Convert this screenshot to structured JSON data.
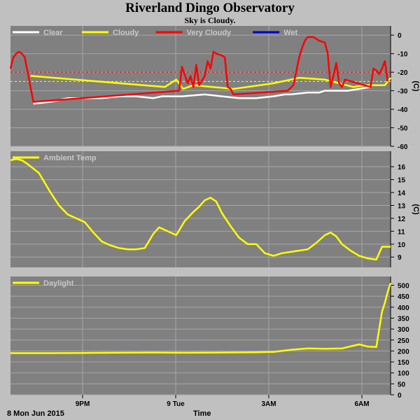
{
  "header": {
    "title": "Riverland Dingo Observatory",
    "subtitle": "Sky is Cloudy."
  },
  "footer": {
    "date_label": "8 Mon Jun 2015",
    "xaxis_title": "Time"
  },
  "colors": {
    "background": "#c0c0c0",
    "plot_bg": "#808080",
    "grid": "#a6a6a6",
    "clear": "#ffffff",
    "cloudy": "#ffff00",
    "very_cloudy": "#ff0000",
    "wet": "#0000cc"
  },
  "chart_data": [
    {
      "type": "line",
      "title": "",
      "ylabel": "(C)",
      "ylim": [
        -60,
        5
      ],
      "yticks": [
        0,
        -10,
        -20,
        -30,
        -40,
        -50,
        -60
      ],
      "x_range": [
        "19:50",
        "06:55"
      ],
      "thresholds": [
        {
          "value": -20,
          "color": "#ff0000"
        },
        {
          "value": -25,
          "color": "#ffff00"
        }
      ],
      "legend": [
        "Clear",
        "Cloudy",
        "Very Cloudy",
        "Wet"
      ],
      "series": [
        {
          "name": "Clear",
          "color": "#ffffff",
          "x": [
            "20:30",
            "21:00",
            "21:30",
            "22:00",
            "22:30",
            "23:00",
            "23:30",
            "00:00",
            "00:15",
            "00:50",
            "01:30",
            "02:00",
            "02:30",
            "03:00",
            "03:30",
            "03:50",
            "04:00",
            "04:30",
            "04:50",
            "05:00",
            "05:20",
            "05:40",
            "06:00",
            "06:20"
          ],
          "values": [
            -37,
            -36,
            -34,
            -34,
            -34,
            -33,
            -33,
            -34,
            -33,
            -33,
            -32,
            -33,
            -34,
            -34,
            -33,
            -32,
            -32,
            -31,
            -31,
            -30,
            -30,
            -30,
            -29,
            -28
          ]
        },
        {
          "name": "Cloudy",
          "color": "#ffff00",
          "x": [
            "20:25",
            "00:20",
            "00:40",
            "00:52",
            "01:10",
            "02:20",
            "03:30",
            "04:15",
            "05:00",
            "05:50",
            "06:10",
            "06:45",
            "06:55"
          ],
          "values": [
            -22,
            -28,
            -24,
            -29,
            -27,
            -29,
            -26,
            -23,
            -24,
            -28,
            -27,
            -27,
            -23
          ]
        },
        {
          "name": "Very Cloudy",
          "color": "#ff0000",
          "x": [
            "19:50",
            "19:55",
            "20:00",
            "20:05",
            "20:10",
            "20:15",
            "20:20",
            "20:25",
            "20:30",
            "00:45",
            "00:50",
            "01:00",
            "01:05",
            "01:10",
            "01:15",
            "01:20",
            "01:30",
            "01:35",
            "01:40",
            "01:45",
            "01:50",
            "02:00",
            "02:05",
            "02:10",
            "02:15",
            "02:20",
            "03:55",
            "04:05",
            "04:15",
            "04:20",
            "04:25",
            "04:30",
            "04:35",
            "04:40",
            "04:45",
            "04:50",
            "05:00",
            "05:05",
            "05:10",
            "05:15",
            "05:20",
            "05:25",
            "05:30",
            "05:35",
            "06:20",
            "06:25",
            "06:30",
            "06:35",
            "06:40",
            "06:45",
            "06:50"
          ],
          "values": [
            -18,
            -12,
            -10,
            -9,
            -10,
            -12,
            -20,
            -28,
            -36,
            -30,
            -17,
            -26,
            -22,
            -28,
            -16,
            -27,
            -22,
            -14,
            -18,
            -9,
            -10,
            -11,
            -12,
            -28,
            -29,
            -32,
            -30,
            -27,
            -12,
            -7,
            -3,
            -1,
            -1,
            -1,
            -2,
            -3,
            -4,
            -10,
            -28,
            -22,
            -15,
            -26,
            -28,
            -24,
            -28,
            -18,
            -19,
            -21,
            -18,
            -14,
            -25
          ]
        },
        {
          "name": "Wet",
          "color": "#0000cc",
          "x": [],
          "values": []
        }
      ]
    },
    {
      "type": "line",
      "title": "",
      "ylabel": "(C)",
      "ylim": [
        8.2,
        17.2
      ],
      "yticks": [
        9,
        10,
        11,
        12,
        13,
        14,
        15,
        16
      ],
      "x_range": [
        "19:50",
        "06:55"
      ],
      "legend": [
        "Ambient Temp"
      ],
      "series": [
        {
          "name": "Ambient Temp",
          "color": "#ffff00",
          "x": [
            "19:50",
            "20:00",
            "20:10",
            "20:20",
            "20:40",
            "21:00",
            "21:15",
            "21:30",
            "21:45",
            "22:00",
            "22:15",
            "22:30",
            "22:45",
            "23:00",
            "23:15",
            "23:30",
            "23:45",
            "00:00",
            "00:10",
            "00:20",
            "00:40",
            "00:55",
            "01:10",
            "01:20",
            "01:30",
            "01:40",
            "01:50",
            "02:00",
            "02:15",
            "02:30",
            "02:45",
            "03:00",
            "03:15",
            "03:30",
            "03:45",
            "04:00",
            "04:15",
            "04:30",
            "04:45",
            "05:00",
            "05:10",
            "05:20",
            "05:30",
            "05:45",
            "06:00",
            "06:15",
            "06:30",
            "06:40",
            "06:50",
            "06:55"
          ],
          "values": [
            16.5,
            16.6,
            16.5,
            16.2,
            15.5,
            14.0,
            13.0,
            12.3,
            12.0,
            11.7,
            10.9,
            10.2,
            9.9,
            9.7,
            9.6,
            9.6,
            9.7,
            10.8,
            11.3,
            11.1,
            10.7,
            11.8,
            12.5,
            12.9,
            13.4,
            13.6,
            13.3,
            12.4,
            11.4,
            10.5,
            10.0,
            10.0,
            9.3,
            9.1,
            9.3,
            9.4,
            9.5,
            9.6,
            10.1,
            10.7,
            10.9,
            10.6,
            10.0,
            9.5,
            9.1,
            8.9,
            8.8,
            9.8,
            9.8,
            9.8
          ]
        }
      ]
    },
    {
      "type": "line",
      "title": "",
      "ylabel": "",
      "ylim": [
        0,
        540
      ],
      "yticks": [
        0,
        50,
        100,
        150,
        200,
        250,
        300,
        350,
        400,
        450,
        500
      ],
      "xticks": [
        "9PM",
        "9 Tue",
        "3AM",
        "6AM"
      ],
      "x_range": [
        "19:50",
        "06:55"
      ],
      "legend": [
        "Daylight"
      ],
      "series": [
        {
          "name": "Daylight",
          "color": "#ffff00",
          "x": [
            "19:50",
            "21:00",
            "22:00",
            "23:00",
            "00:00",
            "01:00",
            "02:00",
            "03:00",
            "03:30",
            "04:00",
            "04:30",
            "05:00",
            "05:30",
            "06:00",
            "06:15",
            "06:30",
            "06:35",
            "06:40",
            "06:45",
            "06:50",
            "06:55"
          ],
          "values": [
            190,
            190,
            191,
            192,
            193,
            192,
            193,
            194,
            196,
            205,
            212,
            210,
            212,
            230,
            220,
            218,
            300,
            380,
            420,
            470,
            510
          ]
        }
      ]
    }
  ]
}
